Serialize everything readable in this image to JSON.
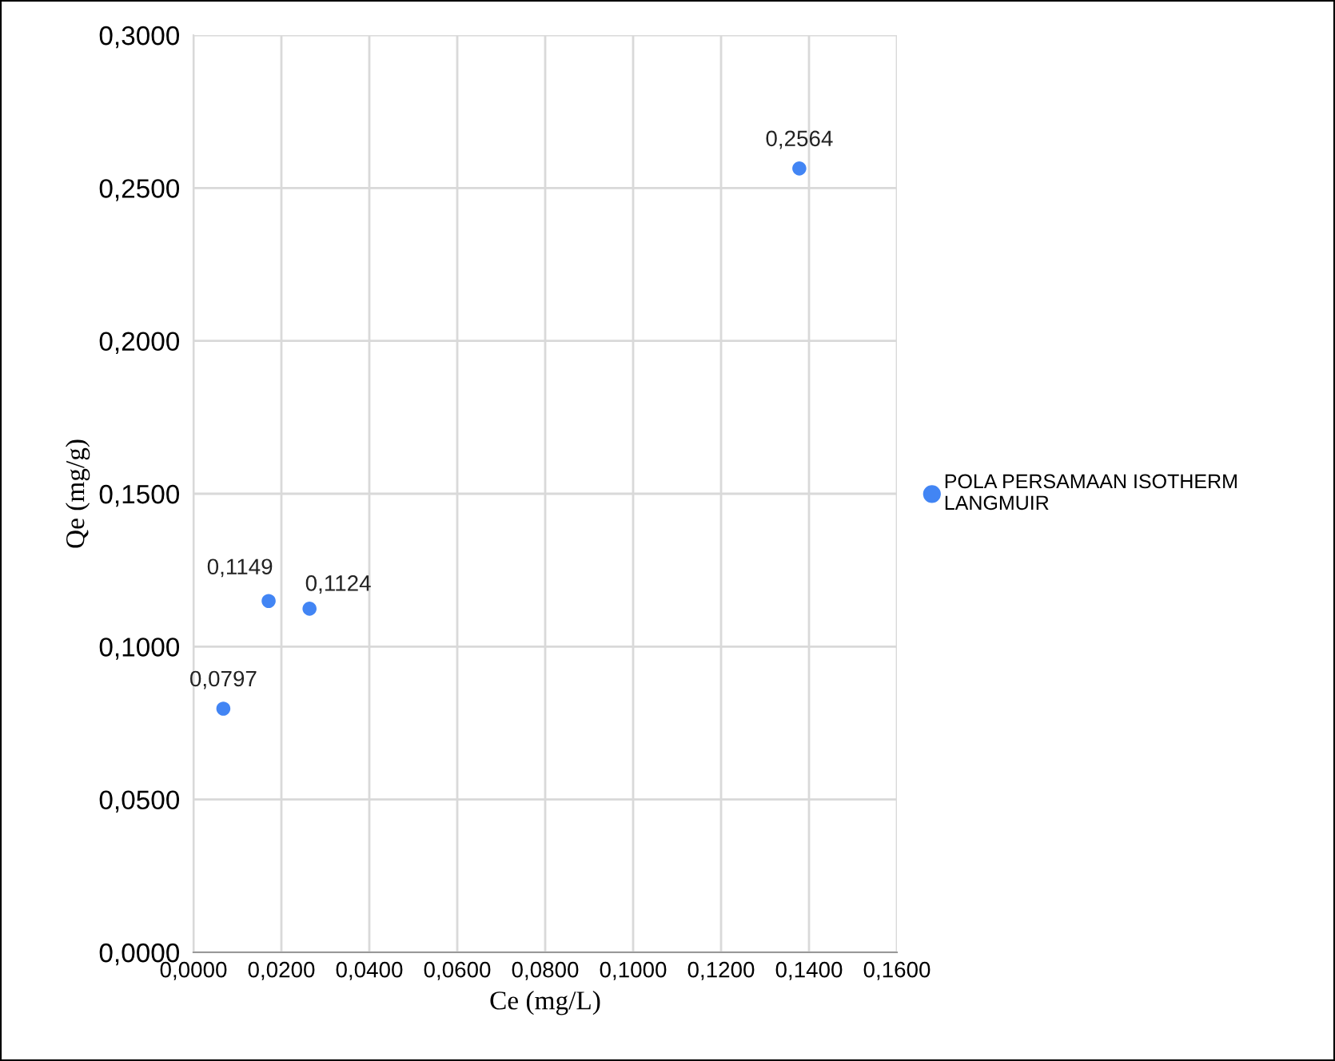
{
  "chart_data": {
    "type": "scatter",
    "xlabel": "Ce (mg/L)",
    "ylabel": "Qe (mg/g)",
    "x": [
      0.0068,
      0.0171,
      0.0264,
      0.1378
    ],
    "series": [
      {
        "name": "POLA PERSAMAAN ISOTHERM LANGMUIR",
        "color": "#4285f4",
        "values": [
          0.0797,
          0.1149,
          0.1124,
          0.2564
        ],
        "value_labels": [
          "0,0797",
          "0,1149",
          "0,1124",
          "0,2564"
        ]
      }
    ],
    "marker": "circle",
    "grid": true,
    "legend": "right",
    "xlim": [
      0,
      0.16
    ],
    "xticks": [
      {
        "value": 0,
        "label": "0,0000"
      },
      {
        "value": 0.02,
        "label": "0,0200"
      },
      {
        "value": 0.04,
        "label": "0,0400"
      },
      {
        "value": 0.06,
        "label": "0,0600"
      },
      {
        "value": 0.08,
        "label": "0,0800"
      },
      {
        "value": 0.1,
        "label": "0,1000"
      },
      {
        "value": 0.12,
        "label": "0,1200"
      },
      {
        "value": 0.14,
        "label": "0,1400"
      },
      {
        "value": 0.16,
        "label": "0,1600"
      }
    ],
    "ylim": [
      0,
      0.3
    ],
    "yticks": [
      {
        "value": 0,
        "label": "0,0000"
      },
      {
        "value": 0.05,
        "label": "0,0500"
      },
      {
        "value": 0.1,
        "label": "0,1000"
      },
      {
        "value": 0.15,
        "label": "0,1500"
      },
      {
        "value": 0.2,
        "label": "0,2000"
      },
      {
        "value": 0.25,
        "label": "0,2500"
      },
      {
        "value": 0.3,
        "label": "0,3000"
      }
    ]
  }
}
